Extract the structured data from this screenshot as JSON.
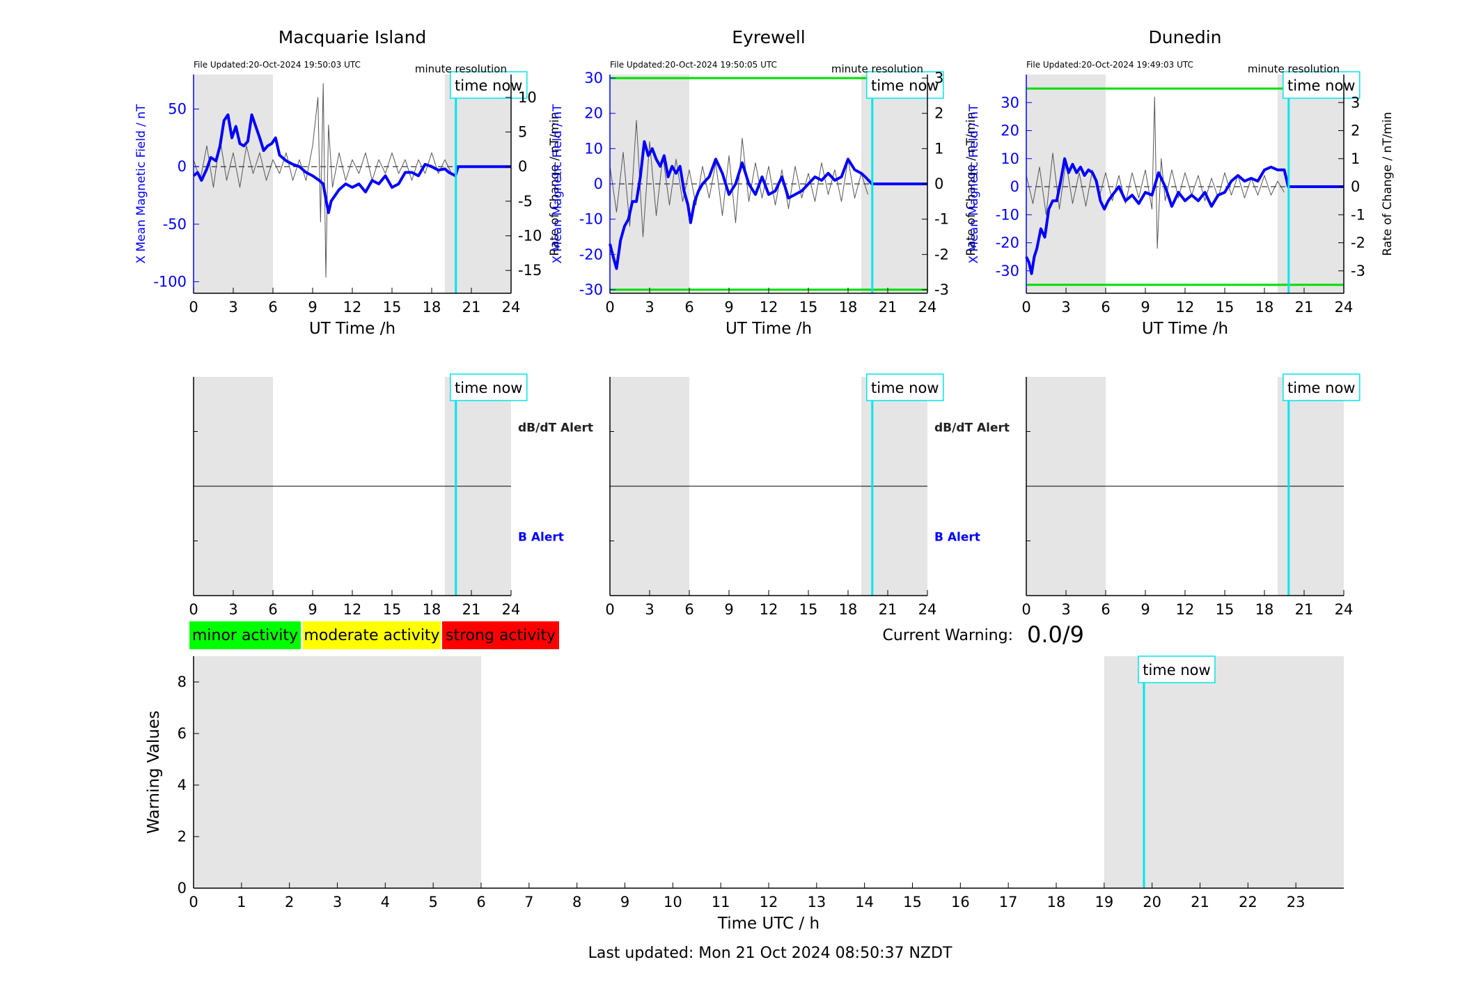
{
  "colors": {
    "shade": "#e5e5e5",
    "x_field": "#0000ff",
    "rate": "#555555",
    "time_now": "#00e5ee",
    "threshold": "#00dd00",
    "dbdt_alert_label": "#222222",
    "b_alert_label": "#0000ff",
    "legend_minor": "#00ff00",
    "legend_moderate": "#ffff00",
    "legend_strong": "#ff0000"
  },
  "labels": {
    "time_now": "time now",
    "minute_resolution": "minute resolution",
    "ut_time": "UT Time /h",
    "left_ylabel": "X Mean Magnetic Field / nT",
    "right_ylabel": "Rate of Change / nT/min",
    "dbdt_alert": "dB/dT Alert",
    "b_alert": "B Alert",
    "legend": [
      "minor activity",
      "moderate activity",
      "strong activity"
    ],
    "current_warning_label": "Current Warning:",
    "current_warning_value": "0.0/9",
    "warning_ylabel": "Warning Values",
    "warning_xlabel": "Time UTC / h",
    "last_updated": "Last updated: Mon 21 Oct 2024 08:50:37 NZDT"
  },
  "chart_data": [
    {
      "type": "line",
      "title": "Macquarie Island",
      "file_updated": "File Updated:20-Oct-2024 19:50:03 UTC",
      "xlabel": "UT Time /h",
      "ylabel": "X Mean Magnetic Field / nT",
      "y2label": "Rate of Change / nT/min",
      "xlim": [
        0,
        24
      ],
      "ylim": [
        -110,
        80
      ],
      "y2lim": [
        -18.3,
        13.3
      ],
      "xticks": [
        0,
        3,
        6,
        9,
        12,
        15,
        18,
        21,
        24
      ],
      "yticks": [
        -100,
        -50,
        0,
        50
      ],
      "y2ticks": [
        -15,
        -10,
        -5,
        0,
        5,
        10
      ],
      "shaded_x": [
        [
          0,
          6
        ],
        [
          19,
          24
        ]
      ],
      "time_now": 19.83,
      "thresholds": [],
      "series": [
        {
          "axis": "left",
          "x": [
            0,
            0.3,
            0.6,
            1,
            1.3,
            1.7,
            2,
            2.3,
            2.6,
            2.9,
            3.2,
            3.5,
            3.8,
            4.1,
            4.4,
            4.7,
            5,
            5.3,
            5.6,
            5.9,
            6.2,
            6.5,
            7,
            7.5,
            8,
            8.5,
            9,
            9.5,
            9.8,
            10,
            10.2,
            10.4,
            10.7,
            11,
            11.5,
            12,
            12.5,
            13,
            13.5,
            14,
            14.5,
            15,
            15.5,
            16,
            16.5,
            17,
            17.5,
            18,
            18.5,
            19,
            19.3,
            19.8,
            20,
            24
          ],
          "values": [
            -8,
            -5,
            -12,
            -2,
            8,
            5,
            18,
            40,
            45,
            25,
            35,
            20,
            18,
            22,
            45,
            35,
            25,
            14,
            18,
            20,
            25,
            10,
            5,
            2,
            0,
            -5,
            -8,
            -12,
            -15,
            -28,
            -40,
            -30,
            -25,
            -20,
            -15,
            -18,
            -15,
            -22,
            -12,
            -15,
            -8,
            -18,
            -15,
            -5,
            -5,
            -8,
            2,
            0,
            -3,
            -2,
            -5,
            -8,
            0,
            0
          ]
        },
        {
          "axis": "right",
          "x": [
            0,
            0.5,
            1,
            1.5,
            2,
            2.5,
            3,
            3.5,
            4,
            4.5,
            5,
            5.5,
            6,
            6.5,
            7,
            7.5,
            8,
            8.5,
            9,
            9.4,
            9.6,
            9.8,
            10,
            10.2,
            10.5,
            11,
            11.5,
            12,
            12.5,
            13,
            13.5,
            14,
            14.5,
            15,
            15.5,
            16,
            16.5,
            17,
            17.5,
            18,
            18.5,
            19,
            19.5
          ],
          "values": [
            1,
            -2,
            3,
            -3,
            4,
            -2,
            2,
            -3,
            3,
            -1,
            2,
            -2,
            1,
            -1,
            2,
            -2,
            1,
            -2,
            3,
            10,
            -8,
            12,
            -16,
            6,
            -3,
            2,
            -2,
            1,
            -1,
            2,
            -2,
            1,
            -1,
            2,
            -1,
            1,
            -2,
            1,
            -1,
            2,
            -1,
            1,
            -1
          ]
        }
      ]
    },
    {
      "type": "line",
      "title": "Eyrewell",
      "file_updated": "File Updated:20-Oct-2024 19:50:05 UTC",
      "xlabel": "UT Time /h",
      "ylabel": "X Mean Magnetic Field / nT",
      "y2label": "Rate of Change / nT/min",
      "xlim": [
        0,
        24
      ],
      "ylim": [
        -31,
        31
      ],
      "y2lim": [
        -3.1,
        3.1
      ],
      "xticks": [
        0,
        3,
        6,
        9,
        12,
        15,
        18,
        21,
        24
      ],
      "yticks": [
        -30,
        -20,
        -10,
        0,
        10,
        20,
        30
      ],
      "y2ticks": [
        -3,
        -2,
        -1,
        0,
        1,
        2,
        3
      ],
      "shaded_x": [
        [
          0,
          6
        ],
        [
          19,
          24
        ]
      ],
      "time_now": 19.83,
      "thresholds": [
        30,
        -30
      ],
      "series": [
        {
          "axis": "left",
          "x": [
            0,
            0.2,
            0.5,
            0.8,
            1.1,
            1.4,
            1.7,
            2,
            2.3,
            2.6,
            2.9,
            3.2,
            3.5,
            3.8,
            4.1,
            4.4,
            4.7,
            5,
            5.3,
            5.6,
            5.9,
            6.1,
            6.4,
            6.7,
            7,
            7.5,
            8,
            8.5,
            9,
            9.5,
            10,
            10.5,
            11,
            11.5,
            12,
            12.5,
            13,
            13.5,
            14,
            14.5,
            15,
            15.5,
            16,
            16.5,
            17,
            17.5,
            18,
            18.5,
            19,
            19.3,
            19.8,
            24
          ],
          "values": [
            -17,
            -20,
            -24,
            -16,
            -12,
            -10,
            -5,
            -5,
            2,
            12,
            8,
            10,
            7,
            5,
            8,
            2,
            5,
            3,
            5,
            -2,
            -6,
            -11,
            -5,
            -2,
            0,
            2,
            7,
            3,
            -3,
            0,
            6,
            0,
            -3,
            2,
            -3,
            -2,
            2,
            -4,
            -3,
            -2,
            0,
            2,
            1,
            3,
            1,
            2,
            7,
            4,
            3,
            2,
            0,
            0
          ]
        },
        {
          "axis": "right",
          "x": [
            0,
            0.5,
            1,
            1.5,
            2,
            2.5,
            3,
            3.5,
            4,
            4.5,
            5,
            5.5,
            6,
            6.5,
            7,
            7.5,
            8,
            8.5,
            9,
            9.5,
            10,
            10.5,
            11,
            11.5,
            12,
            12.5,
            13,
            13.5,
            14,
            14.5,
            15,
            15.5,
            16,
            16.5,
            17,
            17.5,
            18,
            18.5,
            19,
            19.5
          ],
          "values": [
            0.5,
            -0.8,
            0.9,
            -1.2,
            1.8,
            -1.5,
            1.2,
            -0.9,
            0.8,
            -0.6,
            0.7,
            -0.5,
            0.4,
            -0.6,
            0.5,
            -0.4,
            0.6,
            -0.9,
            0.8,
            -1.1,
            1.3,
            -0.5,
            0.6,
            -0.4,
            0.5,
            -0.6,
            0.4,
            -0.7,
            0.5,
            -0.4,
            0.3,
            -0.5,
            0.6,
            -0.3,
            0.4,
            -0.5,
            0.7,
            -0.4,
            0.3,
            -0.3
          ]
        }
      ]
    },
    {
      "type": "line",
      "title": "Dunedin",
      "file_updated": "File Updated:20-Oct-2024 19:49:03 UTC",
      "xlabel": "UT Time /h",
      "ylabel": "X Mean Magnetic Field / nT",
      "y2label": "Rate of Change / nT/min",
      "xlim": [
        0,
        24
      ],
      "ylim": [
        -38,
        40
      ],
      "y2lim": [
        -3.8,
        4
      ],
      "xticks": [
        0,
        3,
        6,
        9,
        12,
        15,
        18,
        21,
        24
      ],
      "yticks": [
        -30,
        -20,
        -10,
        0,
        10,
        20,
        30
      ],
      "y2ticks": [
        -3,
        -2,
        -1,
        0,
        1,
        2,
        3
      ],
      "shaded_x": [
        [
          0,
          6
        ],
        [
          19,
          24
        ]
      ],
      "time_now": 19.83,
      "thresholds": [
        35,
        -35
      ],
      "series": [
        {
          "axis": "left",
          "x": [
            0,
            0.2,
            0.4,
            0.6,
            0.8,
            1.1,
            1.4,
            1.7,
            2,
            2.3,
            2.6,
            2.9,
            3.2,
            3.5,
            3.8,
            4.1,
            4.4,
            4.7,
            5,
            5.3,
            5.6,
            5.9,
            6.2,
            6.5,
            7,
            7.5,
            8,
            8.5,
            9,
            9.5,
            10,
            10.5,
            11,
            11.5,
            12,
            12.5,
            13,
            13.5,
            14,
            14.5,
            15,
            15.5,
            16,
            16.5,
            17,
            17.5,
            18,
            18.5,
            19,
            19.5,
            19.8,
            24
          ],
          "values": [
            -25,
            -27,
            -31,
            -25,
            -22,
            -15,
            -18,
            -8,
            -5,
            -5,
            2,
            10,
            5,
            8,
            5,
            7,
            4,
            6,
            5,
            2,
            -5,
            -8,
            -5,
            -3,
            0,
            -5,
            -3,
            -6,
            -2,
            -3,
            5,
            0,
            -7,
            -2,
            -5,
            -3,
            -5,
            -2,
            -7,
            -3,
            -2,
            2,
            4,
            2,
            3,
            2,
            6,
            7,
            6,
            6,
            0,
            0
          ]
        },
        {
          "axis": "right",
          "x": [
            0,
            0.5,
            1,
            1.5,
            2,
            2.5,
            3,
            3.5,
            4,
            4.5,
            5,
            5.5,
            6,
            6.5,
            7,
            7.5,
            8,
            8.5,
            9,
            9.5,
            9.7,
            9.9,
            10.2,
            10.5,
            11,
            11.5,
            12,
            12.5,
            13,
            13.5,
            14,
            14.5,
            15,
            15.5,
            16,
            16.5,
            17,
            17.5,
            18,
            18.5,
            19,
            19.5
          ],
          "values": [
            0.4,
            -0.6,
            0.7,
            -1,
            1.2,
            -0.8,
            0.9,
            -0.6,
            0.5,
            -0.7,
            0.6,
            -0.4,
            0.5,
            -0.5,
            0.4,
            -0.6,
            0.5,
            -0.4,
            0.6,
            -0.8,
            3.2,
            -2.2,
            1,
            -0.5,
            0.6,
            -0.4,
            0.5,
            -0.3,
            0.4,
            -0.5,
            0.3,
            -0.4,
            0.5,
            -0.3,
            0.4,
            -0.4,
            0.3,
            -0.3,
            0.4,
            -0.3,
            0.2,
            -0.2
          ]
        }
      ]
    },
    {
      "type": "line",
      "title": "",
      "panel": "Macquarie Island alerts",
      "xlim": [
        0,
        24
      ],
      "xticks": [
        0,
        3,
        6,
        9,
        12,
        15,
        18,
        21,
        24
      ],
      "shaded_x": [
        [
          0,
          6
        ],
        [
          19,
          24
        ]
      ],
      "time_now": 19.83,
      "series": [],
      "show_alert_labels": true
    },
    {
      "type": "line",
      "title": "",
      "panel": "Eyrewell alerts",
      "xlim": [
        0,
        24
      ],
      "xticks": [
        0,
        3,
        6,
        9,
        12,
        15,
        18,
        21,
        24
      ],
      "shaded_x": [
        [
          0,
          6
        ],
        [
          19,
          24
        ]
      ],
      "time_now": 19.83,
      "series": [],
      "show_alert_labels": true
    },
    {
      "type": "line",
      "title": "",
      "panel": "Dunedin alerts",
      "xlim": [
        0,
        24
      ],
      "xticks": [
        0,
        3,
        6,
        9,
        12,
        15,
        18,
        21,
        24
      ],
      "shaded_x": [
        [
          0,
          6
        ],
        [
          19,
          24
        ]
      ],
      "time_now": 19.83,
      "series": [],
      "show_alert_labels": false
    },
    {
      "type": "line",
      "title": "",
      "panel": "Warning values",
      "xlabel": "Time UTC / h",
      "ylabel": "Warning Values",
      "xlim": [
        0,
        24
      ],
      "ylim": [
        0,
        9
      ],
      "xticks": [
        0,
        1,
        2,
        3,
        4,
        5,
        6,
        7,
        8,
        9,
        10,
        11,
        12,
        13,
        14,
        15,
        16,
        17,
        18,
        19,
        20,
        21,
        22,
        23
      ],
      "yticks": [
        0,
        2,
        4,
        6,
        8
      ],
      "shaded_x": [
        [
          0,
          6
        ],
        [
          19,
          24
        ]
      ],
      "time_now": 19.83,
      "series": []
    }
  ]
}
